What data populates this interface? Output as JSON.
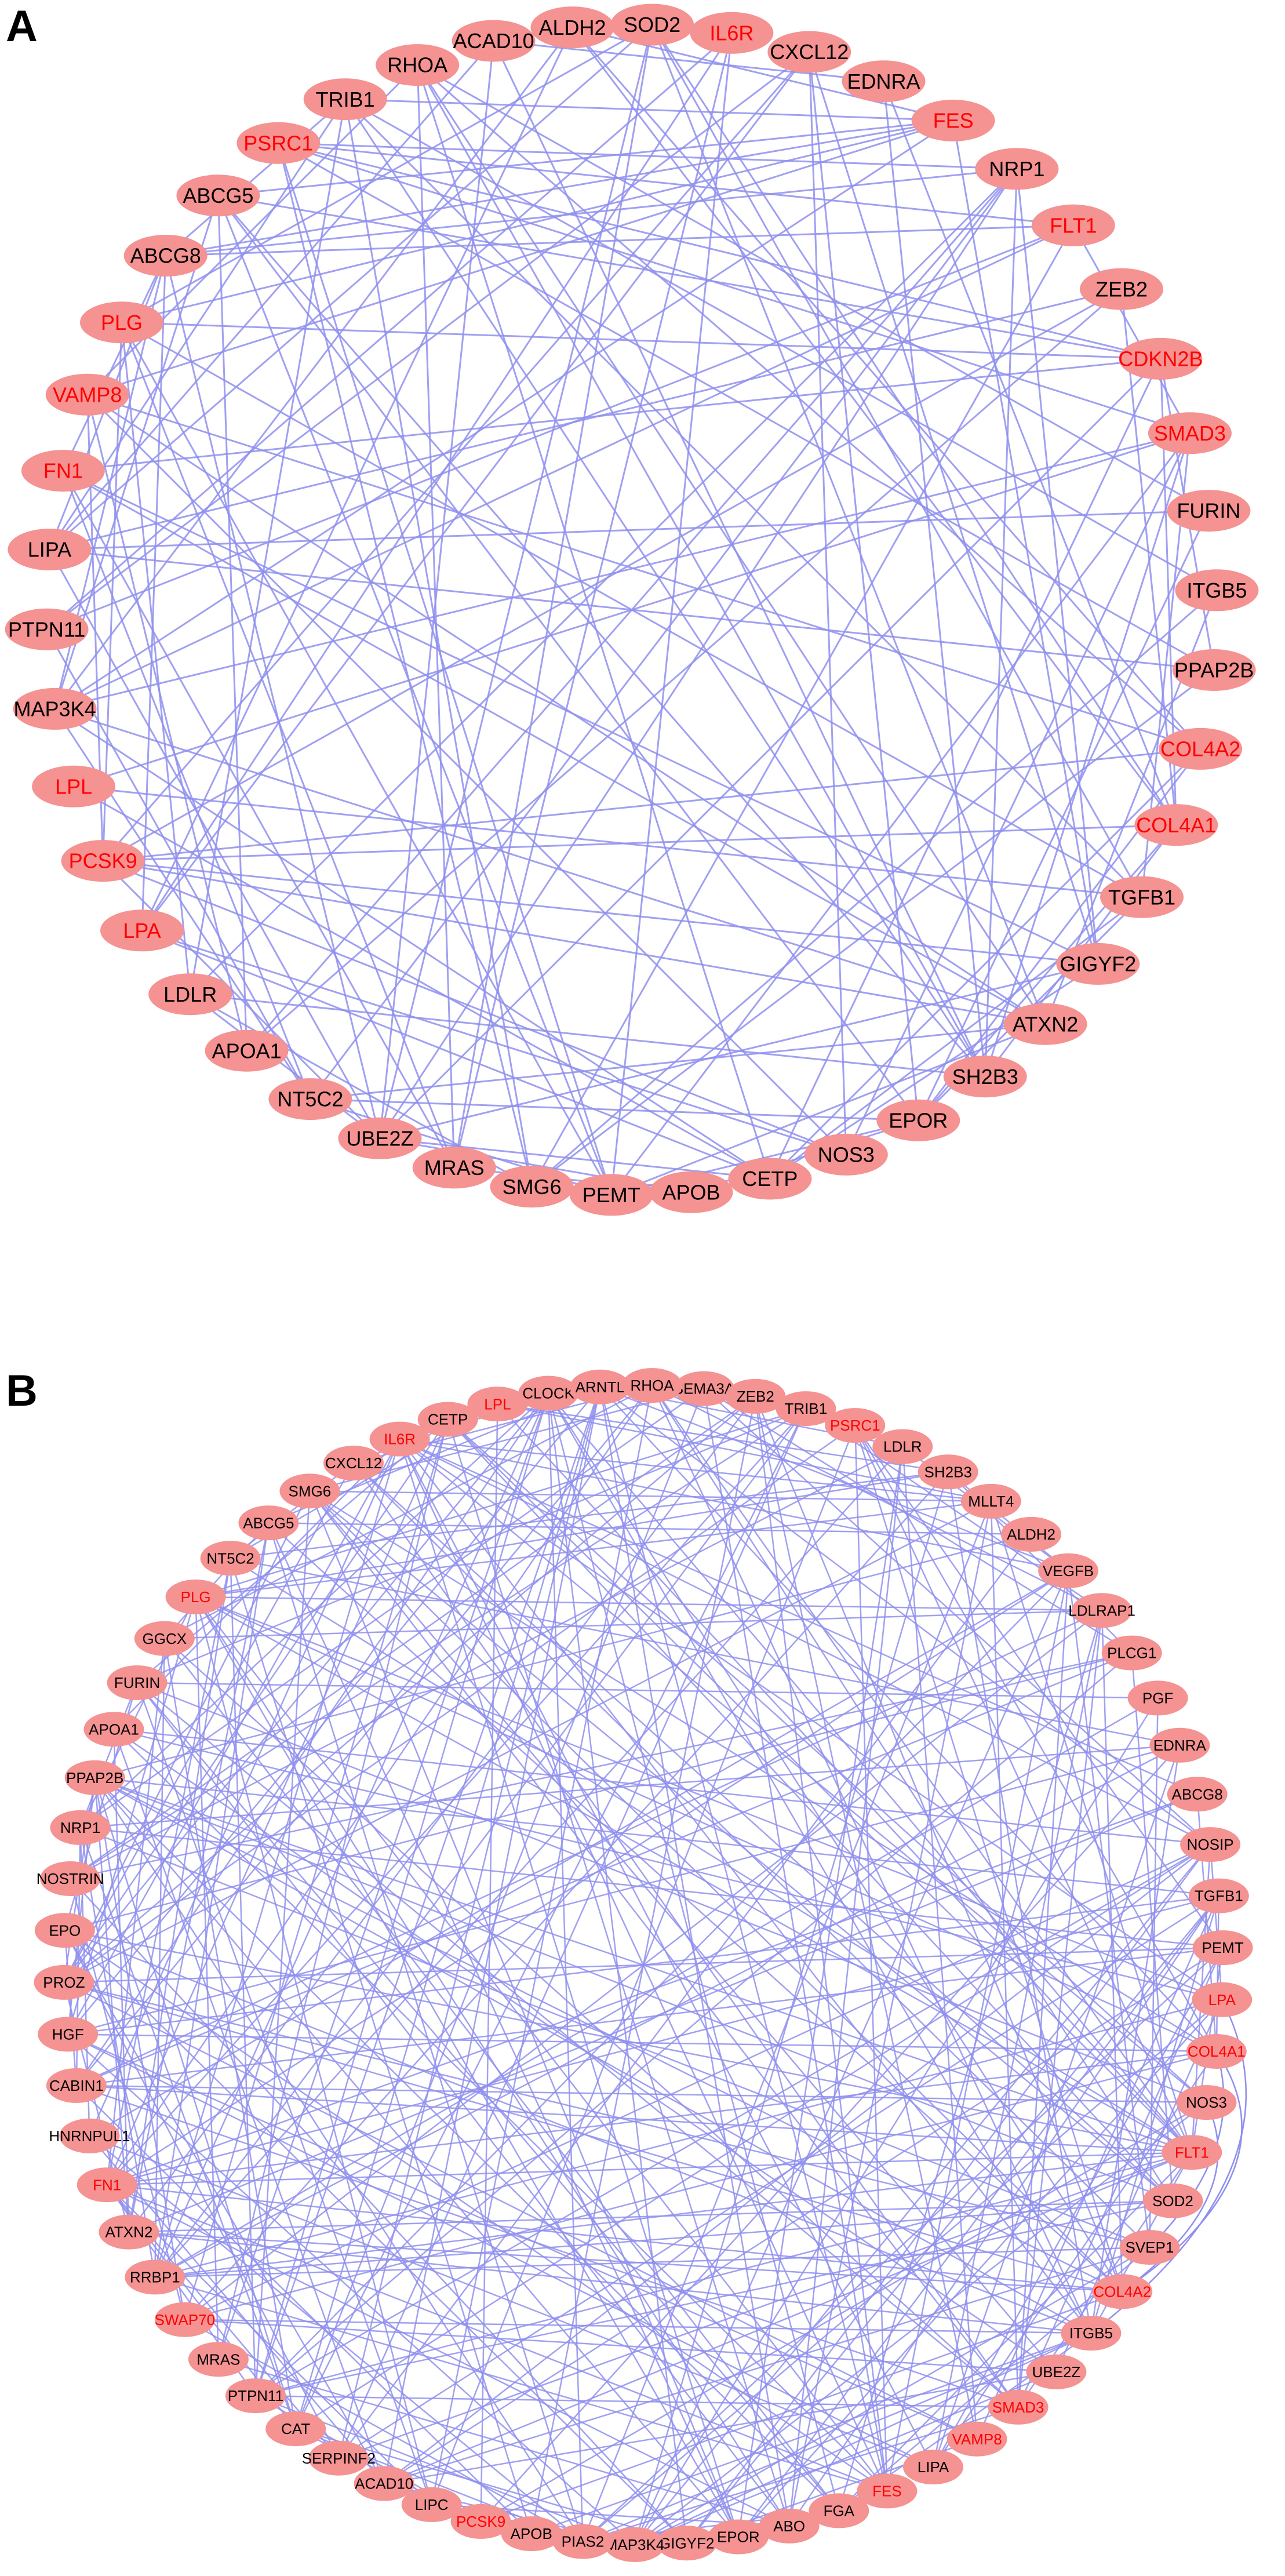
{
  "colors": {
    "node_fill": "#f59292",
    "edge": "#8f8fee",
    "label_highlight": "#ff0000",
    "label_normal": "#000000",
    "background": "#ffffff"
  },
  "panels": [
    {
      "id": "A",
      "label": "A",
      "nodes": [
        {
          "name": "SOD2",
          "highlight": false
        },
        {
          "name": "IL6R",
          "highlight": true
        },
        {
          "name": "CXCL12",
          "highlight": false
        },
        {
          "name": "EDNRA",
          "highlight": false
        },
        {
          "name": "FES",
          "highlight": true
        },
        {
          "name": "NRP1",
          "highlight": false
        },
        {
          "name": "FLT1",
          "highlight": true
        },
        {
          "name": "ZEB2",
          "highlight": false
        },
        {
          "name": "CDKN2B",
          "highlight": true
        },
        {
          "name": "SMAD3",
          "highlight": true
        },
        {
          "name": "FURIN",
          "highlight": false
        },
        {
          "name": "ITGB5",
          "highlight": false
        },
        {
          "name": "PPAP2B",
          "highlight": false
        },
        {
          "name": "COL4A2",
          "highlight": true
        },
        {
          "name": "COL4A1",
          "highlight": true
        },
        {
          "name": "TGFB1",
          "highlight": false
        },
        {
          "name": "GIGYF2",
          "highlight": false
        },
        {
          "name": "ATXN2",
          "highlight": false
        },
        {
          "name": "SH2B3",
          "highlight": false
        },
        {
          "name": "EPOR",
          "highlight": false
        },
        {
          "name": "NOS3",
          "highlight": false
        },
        {
          "name": "CETP",
          "highlight": false
        },
        {
          "name": "APOB",
          "highlight": false
        },
        {
          "name": "PEMT",
          "highlight": false
        },
        {
          "name": "SMG6",
          "highlight": false
        },
        {
          "name": "MRAS",
          "highlight": false
        },
        {
          "name": "UBE2Z",
          "highlight": false
        },
        {
          "name": "NT5C2",
          "highlight": false
        },
        {
          "name": "APOA1",
          "highlight": false
        },
        {
          "name": "LDLR",
          "highlight": false
        },
        {
          "name": "LPA",
          "highlight": true
        },
        {
          "name": "PCSK9",
          "highlight": true
        },
        {
          "name": "LPL",
          "highlight": true
        },
        {
          "name": "MAP3K4",
          "highlight": false
        },
        {
          "name": "PTPN11",
          "highlight": false
        },
        {
          "name": "LIPA",
          "highlight": false
        },
        {
          "name": "FN1",
          "highlight": true
        },
        {
          "name": "VAMP8",
          "highlight": true
        },
        {
          "name": "PLG",
          "highlight": true
        },
        {
          "name": "ABCG8",
          "highlight": false
        },
        {
          "name": "ABCG5",
          "highlight": false
        },
        {
          "name": "PSRC1",
          "highlight": true
        },
        {
          "name": "TRIB1",
          "highlight": false
        },
        {
          "name": "RHOA",
          "highlight": false
        },
        {
          "name": "ACAD10",
          "highlight": false
        },
        {
          "name": "ALDH2",
          "highlight": false
        }
      ]
    },
    {
      "id": "B",
      "label": "B",
      "nodes": [
        {
          "name": "SEMA3A",
          "highlight": false
        },
        {
          "name": "ZEB2",
          "highlight": false
        },
        {
          "name": "TRIB1",
          "highlight": false
        },
        {
          "name": "PSRC1",
          "highlight": true
        },
        {
          "name": "LDLR",
          "highlight": false
        },
        {
          "name": "SH2B3",
          "highlight": false
        },
        {
          "name": "MLLT4",
          "highlight": false
        },
        {
          "name": "ALDH2",
          "highlight": false
        },
        {
          "name": "VEGFB",
          "highlight": false
        },
        {
          "name": "LDLRAP1",
          "highlight": false
        },
        {
          "name": "PLCG1",
          "highlight": false
        },
        {
          "name": "PGF",
          "highlight": false
        },
        {
          "name": "EDNRA",
          "highlight": false
        },
        {
          "name": "ABCG8",
          "highlight": false
        },
        {
          "name": "NOSIP",
          "highlight": false
        },
        {
          "name": "TGFB1",
          "highlight": false
        },
        {
          "name": "PEMT",
          "highlight": false
        },
        {
          "name": "LPA",
          "highlight": true
        },
        {
          "name": "COL4A1",
          "highlight": true
        },
        {
          "name": "NOS3",
          "highlight": false
        },
        {
          "name": "FLT1",
          "highlight": true
        },
        {
          "name": "SOD2",
          "highlight": false
        },
        {
          "name": "SVEP1",
          "highlight": false
        },
        {
          "name": "COL4A2",
          "highlight": true
        },
        {
          "name": "ITGB5",
          "highlight": false
        },
        {
          "name": "UBE2Z",
          "highlight": false
        },
        {
          "name": "SMAD3",
          "highlight": true
        },
        {
          "name": "VAMP8",
          "highlight": true
        },
        {
          "name": "LIPA",
          "highlight": false
        },
        {
          "name": "FES",
          "highlight": true
        },
        {
          "name": "FGA",
          "highlight": false
        },
        {
          "name": "ABO",
          "highlight": false
        },
        {
          "name": "EPOR",
          "highlight": false
        },
        {
          "name": "GIGYF2",
          "highlight": false
        },
        {
          "name": "MAP3K4",
          "highlight": false
        },
        {
          "name": "PIAS2",
          "highlight": false
        },
        {
          "name": "APOB",
          "highlight": false
        },
        {
          "name": "PCSK9",
          "highlight": true
        },
        {
          "name": "LIPC",
          "highlight": false
        },
        {
          "name": "ACAD10",
          "highlight": false
        },
        {
          "name": "SERPINF2",
          "highlight": false
        },
        {
          "name": "CAT",
          "highlight": false
        },
        {
          "name": "PTPN11",
          "highlight": false
        },
        {
          "name": "MRAS",
          "highlight": false
        },
        {
          "name": "SWAP70",
          "highlight": true
        },
        {
          "name": "RRBP1",
          "highlight": false
        },
        {
          "name": "ATXN2",
          "highlight": false
        },
        {
          "name": "FN1",
          "highlight": true
        },
        {
          "name": "HNRNPUL1",
          "highlight": false
        },
        {
          "name": "CABIN1",
          "highlight": false
        },
        {
          "name": "HGF",
          "highlight": false
        },
        {
          "name": "PROZ",
          "highlight": false
        },
        {
          "name": "EPO",
          "highlight": false
        },
        {
          "name": "NOSTRIN",
          "highlight": false
        },
        {
          "name": "NRP1",
          "highlight": false
        },
        {
          "name": "PPAP2B",
          "highlight": false
        },
        {
          "name": "APOA1",
          "highlight": false
        },
        {
          "name": "FURIN",
          "highlight": false
        },
        {
          "name": "GGCX",
          "highlight": false
        },
        {
          "name": "PLG",
          "highlight": true
        },
        {
          "name": "NT5C2",
          "highlight": false
        },
        {
          "name": "ABCG5",
          "highlight": false
        },
        {
          "name": "SMG6",
          "highlight": false
        },
        {
          "name": "CXCL12",
          "highlight": false
        },
        {
          "name": "IL6R",
          "highlight": true
        },
        {
          "name": "CETP",
          "highlight": false
        },
        {
          "name": "LPL",
          "highlight": true
        },
        {
          "name": "CLOCK",
          "highlight": false
        },
        {
          "name": "ARNTL",
          "highlight": false
        },
        {
          "name": "RHOA",
          "highlight": false
        }
      ]
    }
  ]
}
